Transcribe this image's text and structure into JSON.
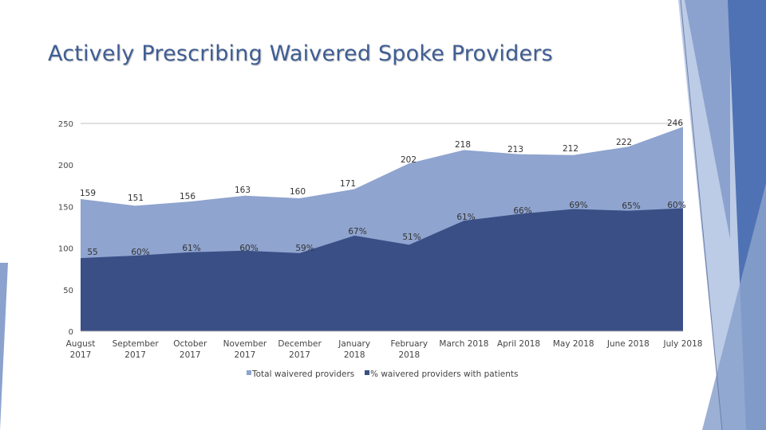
{
  "slide": {
    "title": "Actively Prescribing Waivered Spoke Providers"
  },
  "colors": {
    "title": "#3f5d94",
    "total_area": "#8fa4cf",
    "percent_area": "#3a4f85",
    "axis": "#bfbfbf",
    "deco_light": "#bccbe6",
    "deco_mid": "#8aa2cd",
    "deco_dark": "#4f72b4"
  },
  "chart_data": {
    "type": "area",
    "title": "",
    "xlabel": "",
    "ylabel": "",
    "ylim": [
      0,
      250
    ],
    "yticks": [
      "0",
      "50",
      "100",
      "150",
      "200",
      "250"
    ],
    "grid": false,
    "legend_position": "bottom",
    "categories": [
      [
        "August",
        "2017"
      ],
      [
        "September",
        "2017"
      ],
      [
        "October",
        "2017"
      ],
      [
        "November",
        "2017"
      ],
      [
        "December",
        "2017"
      ],
      [
        "January",
        "2018"
      ],
      [
        "February",
        "2018"
      ],
      [
        "March 2018"
      ],
      [
        "April 2018"
      ],
      [
        "May 2018"
      ],
      [
        "June 2018"
      ],
      [
        "July 2018"
      ]
    ],
    "series": [
      {
        "name": "Total waivered providers",
        "values": [
          159,
          151,
          156,
          163,
          160,
          171,
          202,
          218,
          213,
          212,
          222,
          246
        ],
        "labels": [
          "159",
          "151",
          "156",
          "163",
          "160",
          "171",
          "202",
          "218",
          "213",
          "212",
          "222",
          "246"
        ]
      },
      {
        "name": "% waivered providers with patients",
        "values": [
          88,
          91,
          95,
          97,
          94,
          115,
          104,
          133,
          141,
          147,
          145,
          148
        ],
        "labels": [
          "55",
          "60%",
          "61%",
          "60%",
          "59%",
          "67%",
          "51%",
          "61%",
          "66%",
          "69%",
          "65%",
          "60%"
        ]
      }
    ]
  }
}
